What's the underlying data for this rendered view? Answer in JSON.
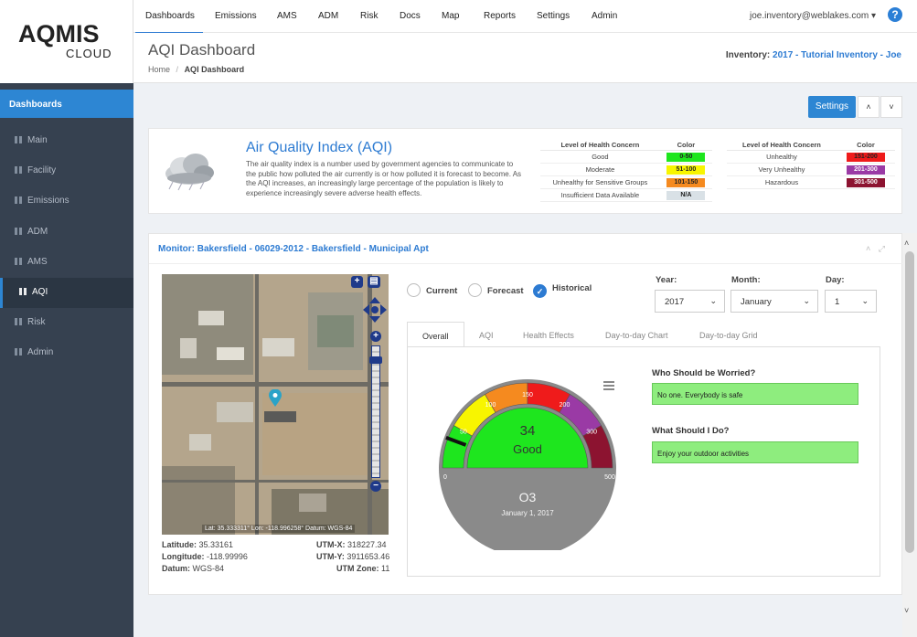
{
  "logo": {
    "line1": "AQMIS",
    "line2": "CLOUD"
  },
  "topnav": {
    "items": [
      "Dashboards",
      "Emissions",
      "AMS",
      "ADM",
      "Risk",
      "Docs",
      "Map",
      "Reports",
      "Settings",
      "Admin"
    ],
    "active": "Dashboards",
    "user": "joe.inventory@weblakes.com ▾",
    "help": "?"
  },
  "header": {
    "title": "AQI Dashboard",
    "breadcrumb_home": "Home",
    "breadcrumb_sep": "/",
    "breadcrumb_current": "AQI Dashboard",
    "inventory_label": "Inventory:",
    "inventory_value": "2017 - Tutorial Inventory - Joe"
  },
  "sidebar": {
    "header": "Dashboards",
    "items": [
      {
        "label": "Main"
      },
      {
        "label": "Facility"
      },
      {
        "label": "Emissions"
      },
      {
        "label": "ADM"
      },
      {
        "label": "AMS"
      },
      {
        "label": "AQI"
      },
      {
        "label": "Risk"
      },
      {
        "label": "Admin"
      }
    ],
    "selected": "AQI"
  },
  "toolbar": {
    "settings_label": "Settings",
    "up_label": "˄",
    "down_label": "˅"
  },
  "aqi_info": {
    "title": "Air Quality Index (AQI)",
    "description": "The air quality index is a number used by government agencies to communicate to the public how polluted the air currently is or how polluted it is forecast to become. As the AQI increases, an increasingly large percentage of the population is likely to experience increasingly severe adverse health effects.",
    "col_concern": "Level of Health Concern",
    "col_color": "Color",
    "table_left": [
      {
        "level": "Good",
        "range": "0-50",
        "color": "#1ee61e"
      },
      {
        "level": "Moderate",
        "range": "51-100",
        "color": "#f8f500"
      },
      {
        "level": "Unhealthy for Sensitive Groups",
        "range": "101-150",
        "color": "#f58a1f"
      },
      {
        "level": "Insufficient Data Available",
        "range": "N/A",
        "color": "#d9e1e6"
      }
    ],
    "table_right": [
      {
        "level": "Unhealthy",
        "range": "151-200",
        "color": "#ef1b1b"
      },
      {
        "level": "Very Unhealthy",
        "range": "201-300",
        "color": "#9a3aa5"
      },
      {
        "level": "Hazardous",
        "range": "301-500",
        "color": "#8c1330"
      }
    ]
  },
  "monitor": {
    "title": "Monitor: Bakersfield - 06029-2012 - Bakersfield - Municipal Apt",
    "collapse_icon": "˄",
    "expand_icon": "⤢"
  },
  "map": {
    "coord_overlay": "Lat: 35.333311°   Lon: -118.996258°   Datum: WGS-84",
    "latitude_label": "Latitude:",
    "latitude": "35.33161",
    "longitude_label": "Longitude:",
    "longitude": "-118.99996",
    "datum_label": "Datum:",
    "datum": "WGS-84",
    "utmx_label": "UTM-X:",
    "utmx": "318227.34",
    "utmy_label": "UTM-Y:",
    "utmy": "3911653.46",
    "utmzone_label": "UTM Zone:",
    "utmzone": "11",
    "zoom_plus": "+",
    "zoom_minus": "−"
  },
  "modes": {
    "options": [
      "Current",
      "Forecast",
      "Historical"
    ],
    "selected": "Historical"
  },
  "date": {
    "year_label": "Year:",
    "year": "2017",
    "month_label": "Month:",
    "month": "January",
    "day_label": "Day:",
    "day": "1"
  },
  "tabs": [
    "Overall",
    "AQI",
    "Health Effects",
    "Day-to-day Chart",
    "Day-to-day Grid"
  ],
  "active_tab": "Overall",
  "gauge": {
    "value": 34,
    "category": "Good",
    "pollutant": "O3",
    "date": "January 1, 2017",
    "scale_labels": [
      "0",
      "50",
      "100",
      "150",
      "200",
      "300",
      "500"
    ],
    "max": 500,
    "colors": {
      "good": "#1ee61e",
      "moderate": "#f8f500",
      "sensitive": "#f58a1f",
      "unhealthy": "#ef1b1b",
      "very": "#9a3aa5",
      "hazard": "#8c1330",
      "dial": "#8a8a8a"
    }
  },
  "advice": {
    "worried_heading": "Who Should be Worried?",
    "worried_answer": "No one. Everybody is safe",
    "todo_heading": "What Should I Do?",
    "todo_answer": "Enjoy your outdoor activities"
  }
}
